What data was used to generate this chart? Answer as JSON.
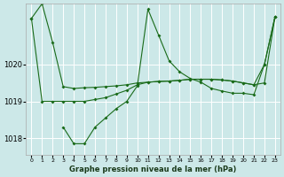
{
  "title": "Graphe pression niveau de la mer (hPa)",
  "background_color": "#cce8e8",
  "grid_color": "#ffffff",
  "line_color": "#1a6b1a",
  "ylim": [
    1017.55,
    1021.65
  ],
  "yticks": [
    1018,
    1019,
    1020
  ],
  "ytick_labels": [
    "1018",
    "1019",
    "1020"
  ],
  "x_ticks": [
    0,
    1,
    2,
    3,
    4,
    5,
    6,
    7,
    8,
    9,
    10,
    11,
    12,
    13,
    14,
    15,
    16,
    17,
    18,
    19,
    20,
    21,
    22,
    23
  ],
  "series1_x": [
    0,
    1,
    2,
    3,
    4,
    5,
    6,
    7,
    8,
    9,
    10,
    11,
    12,
    13,
    14,
    15,
    16,
    17,
    18,
    19,
    20,
    21,
    22,
    23
  ],
  "series1_y": [
    1021.25,
    1021.65,
    1020.6,
    1019.4,
    1019.35,
    1019.37,
    1019.38,
    1019.4,
    1019.42,
    1019.45,
    1019.5,
    1019.52,
    1019.54,
    1019.55,
    1019.57,
    1019.6,
    1019.6,
    1019.6,
    1019.58,
    1019.55,
    1019.5,
    1019.45,
    1019.5,
    1021.3
  ],
  "series2_x": [
    0,
    1,
    2,
    3,
    4,
    5,
    6,
    7,
    8,
    9,
    10,
    11,
    12,
    13,
    14,
    15,
    16,
    17,
    18,
    19,
    20,
    21,
    22,
    23
  ],
  "series2_y": [
    1021.25,
    1019.0,
    1019.0,
    1019.0,
    1019.0,
    1019.0,
    1019.05,
    1019.1,
    1019.2,
    1019.3,
    1019.45,
    1019.52,
    1019.54,
    1019.55,
    1019.57,
    1019.6,
    1019.6,
    1019.6,
    1019.58,
    1019.55,
    1019.5,
    1019.45,
    1020.0,
    1021.3
  ],
  "series3_x": [
    3,
    4,
    5,
    6,
    7,
    8,
    9,
    10,
    11,
    12,
    13,
    14,
    15,
    16,
    17,
    18,
    19,
    20,
    21,
    22,
    23
  ],
  "series3_y": [
    1018.3,
    1017.85,
    1017.85,
    1018.3,
    1018.55,
    1018.8,
    1019.0,
    1019.42,
    1021.5,
    1020.8,
    1020.1,
    1019.8,
    1019.62,
    1019.52,
    1019.35,
    1019.28,
    1019.22,
    1019.22,
    1019.18,
    1020.0,
    1021.3
  ]
}
